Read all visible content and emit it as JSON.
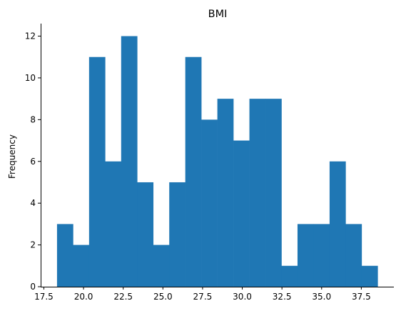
{
  "chart_data": {
    "type": "bar",
    "title": "BMI",
    "xlabel": "",
    "ylabel": "Frequency",
    "bar_color": "#1f77b4",
    "bin_edges": [
      18.33,
      19.34,
      20.35,
      21.36,
      22.37,
      23.38,
      24.39,
      25.4,
      26.41,
      27.42,
      28.43,
      29.44,
      30.45,
      31.46,
      32.47,
      33.48,
      34.49,
      35.5,
      36.51,
      37.52,
      38.53
    ],
    "values": [
      3,
      2,
      11,
      6,
      12,
      5,
      2,
      5,
      11,
      8,
      9,
      7,
      9,
      9,
      1,
      3,
      3,
      6,
      3,
      1
    ],
    "xlim": [
      17.3,
      39.55
    ],
    "ylim": [
      0,
      12.6
    ],
    "xticks": [
      17.5,
      20.0,
      22.5,
      25.0,
      27.5,
      30.0,
      32.5,
      35.0,
      37.5
    ],
    "xtick_labels": [
      "17.5",
      "20.0",
      "22.5",
      "25.0",
      "27.5",
      "30.0",
      "32.5",
      "35.0",
      "37.5"
    ],
    "yticks": [
      0,
      2,
      4,
      6,
      8,
      10,
      12
    ],
    "ytick_labels": [
      "0",
      "2",
      "4",
      "6",
      "8",
      "10",
      "12"
    ],
    "grid": false,
    "spines": "left-bottom"
  }
}
